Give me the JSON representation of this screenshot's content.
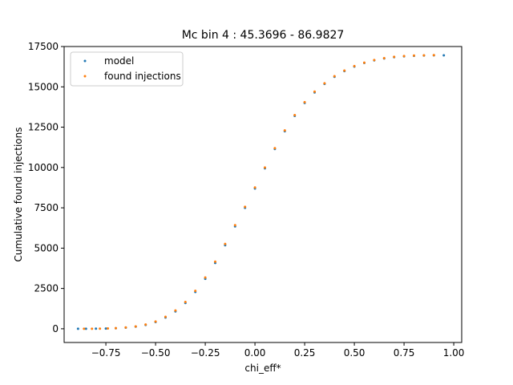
{
  "chart_data": {
    "type": "scatter",
    "title": "Mc bin 4 : 45.3696 - 86.9827",
    "xlabel": "chi_eff*",
    "ylabel": "Cumulative found injections",
    "xlim": [
      -0.96,
      1.04
    ],
    "ylim": [
      -850,
      17500
    ],
    "xticks": [
      -0.75,
      -0.5,
      -0.25,
      0.0,
      0.25,
      0.5,
      0.75,
      1.0
    ],
    "xtick_labels": [
      "−0.75",
      "−0.50",
      "−0.25",
      "0.00",
      "0.25",
      "0.50",
      "0.75",
      "1.00"
    ],
    "yticks": [
      0,
      2500,
      5000,
      7500,
      10000,
      12500,
      15000,
      17500
    ],
    "ytick_labels": [
      "0",
      "2500",
      "5000",
      "7500",
      "10000",
      "12500",
      "15000",
      "17500"
    ],
    "grid": false,
    "legend": {
      "placement": "upper left",
      "entries": [
        "model",
        "found injections"
      ]
    },
    "series": [
      {
        "name": "model",
        "color": "#1f77b4",
        "x": [
          -0.89,
          -0.85,
          -0.8,
          -0.75,
          -0.7,
          -0.65,
          -0.6,
          -0.55,
          -0.5,
          -0.45,
          -0.4,
          -0.35,
          -0.3,
          -0.25,
          -0.2,
          -0.15,
          -0.1,
          -0.05,
          0.0,
          0.05,
          0.1,
          0.15,
          0.2,
          0.25,
          0.3,
          0.35,
          0.4,
          0.45,
          0.5,
          0.55,
          0.6,
          0.65,
          0.7,
          0.75,
          0.8,
          0.85,
          0.9,
          0.95
        ],
        "y": [
          0,
          2,
          6,
          15,
          35,
          70,
          130,
          240,
          420,
          700,
          1080,
          1600,
          2280,
          3100,
          4080,
          5180,
          6350,
          7500,
          8700,
          9950,
          11150,
          12250,
          13200,
          14000,
          14650,
          15180,
          15620,
          15980,
          16260,
          16480,
          16640,
          16760,
          16840,
          16890,
          16920,
          16940,
          16950,
          16955
        ]
      },
      {
        "name": "found injections",
        "color": "#ff7f0e",
        "x": [
          -0.86,
          -0.82,
          -0.78,
          -0.74,
          -0.7,
          -0.65,
          -0.6,
          -0.55,
          -0.5,
          -0.45,
          -0.4,
          -0.35,
          -0.3,
          -0.25,
          -0.2,
          -0.15,
          -0.1,
          -0.05,
          0.0,
          0.05,
          0.1,
          0.15,
          0.2,
          0.25,
          0.3,
          0.35,
          0.4,
          0.45,
          0.5,
          0.55,
          0.6,
          0.65,
          0.7,
          0.75,
          0.8,
          0.85,
          0.9
        ],
        "y": [
          1,
          3,
          8,
          18,
          40,
          80,
          145,
          260,
          450,
          740,
          1130,
          1660,
          2350,
          3180,
          4160,
          5260,
          6420,
          7560,
          8760,
          10000,
          11200,
          12300,
          13250,
          14050,
          14700,
          15220,
          15660,
          16010,
          16290,
          16500,
          16660,
          16780,
          16860,
          16910,
          16940,
          16955,
          16965
        ]
      }
    ]
  }
}
